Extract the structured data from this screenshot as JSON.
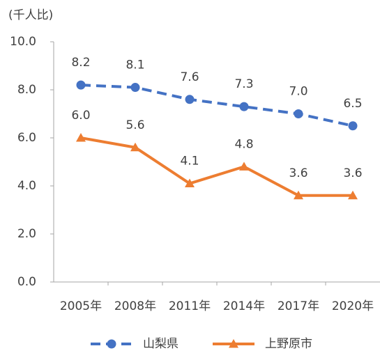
{
  "chart_data": {
    "type": "line",
    "y_axis_label": "(千人比)",
    "categories": [
      "2005年",
      "2008年",
      "2011年",
      "2014年",
      "2017年",
      "2020年"
    ],
    "series": [
      {
        "name": "山梨県",
        "color": "#4472c4",
        "marker": "circle",
        "dashed": true,
        "values": [
          8.2,
          8.1,
          7.6,
          7.3,
          7.0,
          6.5
        ],
        "value_labels": [
          "8.2",
          "8.1",
          "7.6",
          "7.3",
          "7.0",
          "6.5"
        ]
      },
      {
        "name": "上野原市",
        "color": "#ed7d31",
        "marker": "triangle",
        "dashed": false,
        "values": [
          6.0,
          5.6,
          4.1,
          4.8,
          3.6,
          3.6
        ],
        "value_labels": [
          "6.0",
          "5.6",
          "4.1",
          "4.8",
          "3.6",
          "3.6"
        ]
      }
    ],
    "ylim": [
      0,
      10
    ],
    "yticks": [
      {
        "value": 0,
        "label": "0.0"
      },
      {
        "value": 2,
        "label": "2.0"
      },
      {
        "value": 4,
        "label": "4.0"
      },
      {
        "value": 6,
        "label": "6.0"
      },
      {
        "value": 8,
        "label": "8.0"
      },
      {
        "value": 10,
        "label": "10.0"
      }
    ],
    "grid": false,
    "legend": "bottom"
  }
}
